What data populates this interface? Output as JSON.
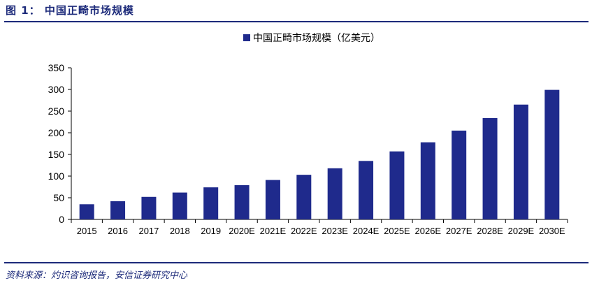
{
  "figure": {
    "title": "图 1： 中国正畸市场规模",
    "source": "资料来源：灼识咨询报告，安信证券研究中心"
  },
  "colors": {
    "bar": "#1f2a8c",
    "rule": "#1c2a7a"
  },
  "chart_data": {
    "type": "bar",
    "categories": [
      "2015",
      "2016",
      "2017",
      "2018",
      "2019",
      "2020E",
      "2021E",
      "2022E",
      "2023E",
      "2024E",
      "2025E",
      "2026E",
      "2027E",
      "2028E",
      "2029E",
      "2030E"
    ],
    "series": [
      {
        "name": "中国正畸市场规模（亿美元）",
        "values": [
          35,
          42,
          52,
          62,
          74,
          79,
          91,
          103,
          118,
          135,
          157,
          178,
          205,
          234,
          265,
          299
        ]
      }
    ],
    "yticks": [
      0,
      50,
      100,
      150,
      200,
      250,
      300,
      350
    ],
    "ylim": [
      0,
      350
    ],
    "legend": "top-center",
    "grid": false
  }
}
